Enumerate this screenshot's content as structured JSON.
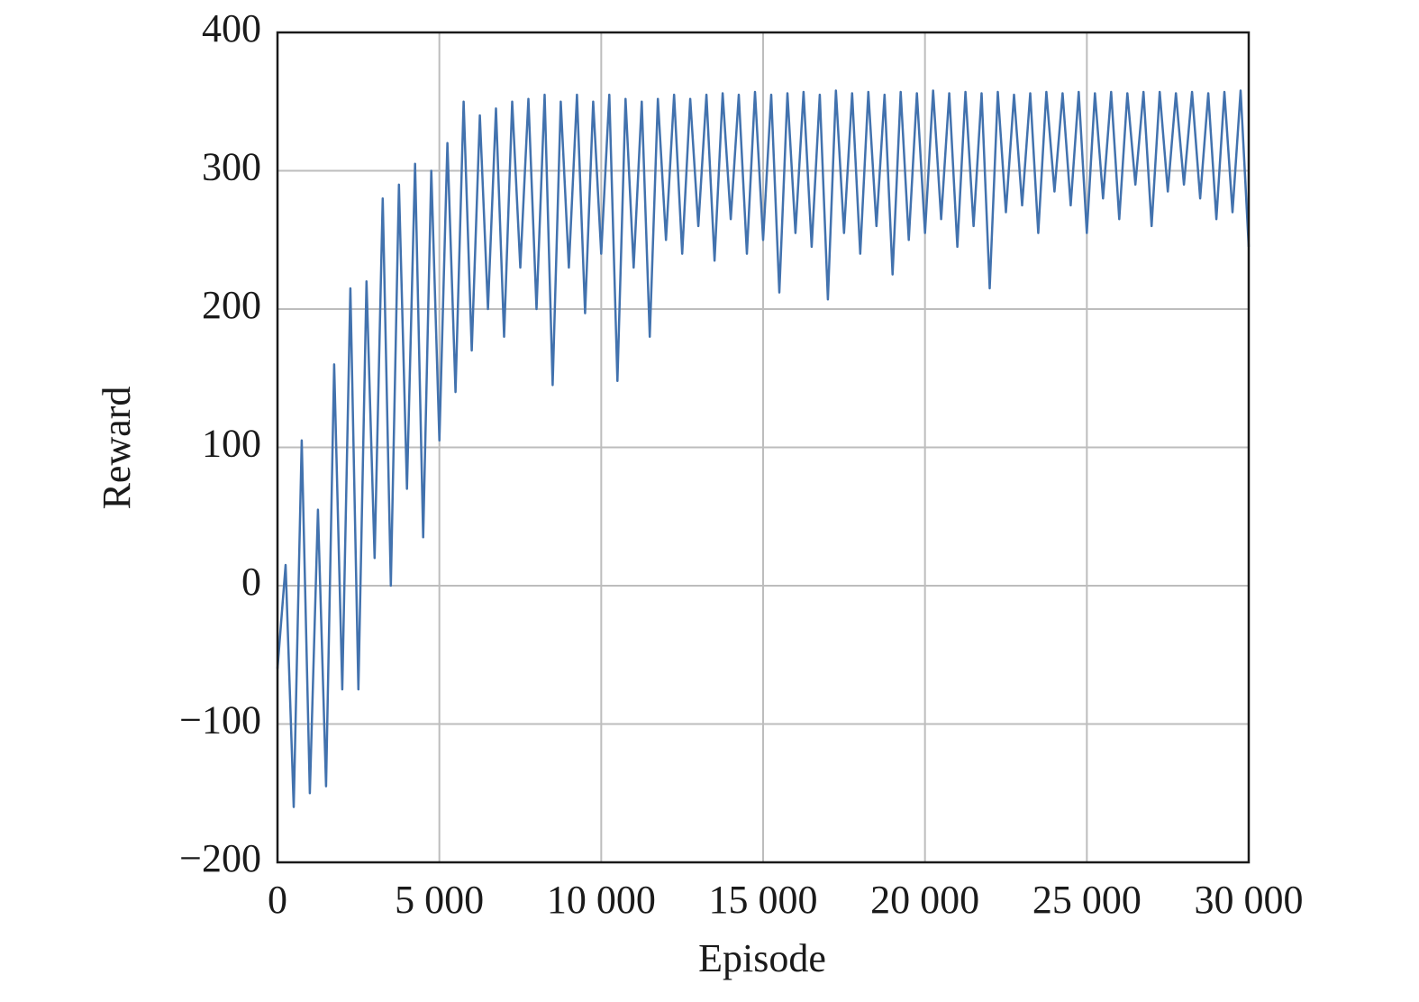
{
  "chart_data": {
    "type": "line",
    "xlabel": "Episode",
    "ylabel": "Reward",
    "x": [
      0,
      250,
      500,
      750,
      1000,
      1250,
      1500,
      1750,
      2000,
      2250,
      2500,
      2750,
      3000,
      3250,
      3500,
      3750,
      4000,
      4250,
      4500,
      4750,
      5000,
      5250,
      5500,
      5750,
      6000,
      6250,
      6500,
      6750,
      7000,
      7250,
      7500,
      7750,
      8000,
      8250,
      8500,
      8750,
      9000,
      9250,
      9500,
      9750,
      10000,
      10250,
      10500,
      10750,
      11000,
      11250,
      11500,
      11750,
      12000,
      12250,
      12500,
      12750,
      13000,
      13250,
      13500,
      13750,
      14000,
      14250,
      14500,
      14750,
      15000,
      15250,
      15500,
      15750,
      16000,
      16250,
      16500,
      16750,
      17000,
      17250,
      17500,
      17750,
      18000,
      18250,
      18500,
      18750,
      19000,
      19250,
      19500,
      19750,
      20000,
      20250,
      20500,
      20750,
      21000,
      21250,
      21500,
      21750,
      22000,
      22250,
      22500,
      22750,
      23000,
      23250,
      23500,
      23750,
      24000,
      24250,
      24500,
      24750,
      25000,
      25250,
      25500,
      25750,
      26000,
      26250,
      26500,
      26750,
      27000,
      27250,
      27500,
      27750,
      28000,
      28250,
      28500,
      28750,
      29000,
      29250,
      29500,
      29750,
      30000
    ],
    "series": [
      {
        "color": "#4272ae",
        "values": [
          -60,
          15,
          -160,
          105,
          -150,
          55,
          -145,
          160,
          -75,
          215,
          -75,
          220,
          20,
          280,
          0,
          290,
          70,
          305,
          35,
          300,
          105,
          320,
          140,
          350,
          170,
          340,
          200,
          345,
          180,
          350,
          230,
          352,
          200,
          355,
          145,
          350,
          230,
          355,
          197,
          350,
          240,
          355,
          148,
          352,
          230,
          350,
          180,
          352,
          250,
          355,
          240,
          352,
          260,
          355,
          235,
          356,
          265,
          355,
          240,
          357,
          250,
          355,
          212,
          356,
          255,
          357,
          245,
          355,
          207,
          358,
          255,
          356,
          240,
          357,
          260,
          355,
          225,
          357,
          250,
          356,
          255,
          358,
          265,
          356,
          245,
          357,
          260,
          356,
          215,
          357,
          270,
          355,
          275,
          356,
          255,
          357,
          285,
          356,
          275,
          357,
          255,
          356,
          280,
          357,
          265,
          356,
          290,
          357,
          260,
          357,
          285,
          356,
          290,
          357,
          280,
          356,
          265,
          357,
          270,
          358,
          245
        ]
      }
    ],
    "xlim": [
      0,
      30000
    ],
    "xticks": [
      0,
      {
        "value": 5000,
        "label": "5 000"
      },
      {
        "value": 10000,
        "label": "10 000"
      },
      {
        "value": 15000,
        "label": "15 000"
      },
      {
        "value": 20000,
        "label": "20 000"
      },
      {
        "value": 25000,
        "label": "25 000"
      },
      {
        "value": 30000,
        "label": "30 000"
      }
    ],
    "ylim": [
      -200,
      400
    ],
    "yticks": [
      {
        "value": -200,
        "label": "−200"
      },
      {
        "value": -100,
        "label": "−100"
      },
      0,
      100,
      200,
      300,
      400
    ],
    "grid": true
  }
}
